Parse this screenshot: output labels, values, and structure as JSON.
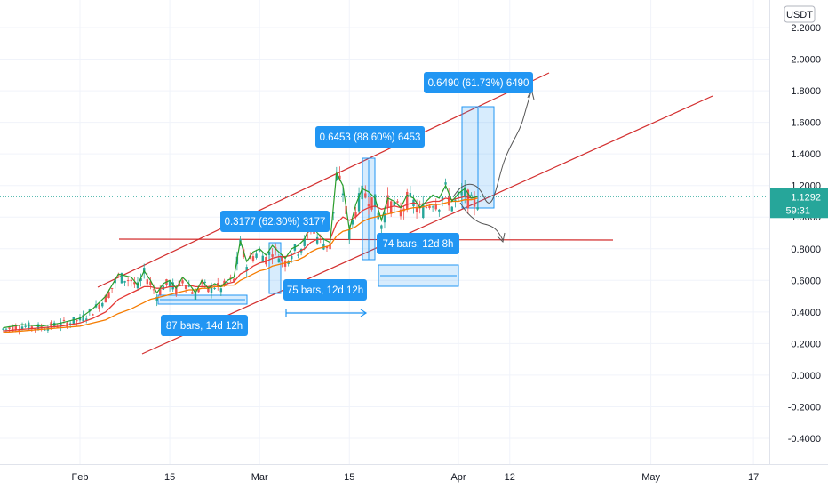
{
  "chart_data": {
    "type": "line",
    "currency_label": "USDT",
    "y_ticks": [
      "2.2000",
      "2.0000",
      "1.8000",
      "1.6000",
      "1.4000",
      "1.2000",
      "1.0000",
      "0.8000",
      "0.6000",
      "0.4000",
      "0.2000",
      "0.0000",
      "-0.2000",
      "-0.4000"
    ],
    "y_tick_values": [
      2.2,
      2.0,
      1.8,
      1.6,
      1.4,
      1.2,
      1.0,
      0.8,
      0.6,
      0.4,
      0.2,
      0.0,
      -0.2,
      -0.4
    ],
    "x_ticks": [
      "Feb",
      "15",
      "Mar",
      "15",
      "Apr",
      "12",
      "May",
      "17"
    ],
    "x_tick_days": [
      0,
      14,
      28,
      42,
      59,
      67,
      89,
      105
    ],
    "y_range": [
      -0.45,
      2.22
    ],
    "day_range": [
      -12,
      115
    ],
    "current_price": "1.1292",
    "countdown": "59:31",
    "grid": true,
    "colors": {
      "price_line": "#2a9d2a",
      "candles_up": "#26a69a",
      "candles_down": "#ef5350",
      "ma_fast": "#e53935",
      "ma_slow": "#f57c00",
      "trend": "#d32f2f",
      "measure": "#2196f3",
      "label_bg": "#2196f3",
      "price_badge": "#26a69a",
      "current_line": "#26a69a"
    },
    "price_series_days": [
      -12,
      -9,
      -6,
      -3,
      0,
      2,
      4,
      6,
      8,
      9,
      10,
      11,
      12,
      13,
      14,
      15,
      16,
      17,
      18,
      19,
      20,
      21,
      22,
      23,
      24,
      25,
      26,
      27,
      28,
      29,
      30,
      31,
      32,
      33,
      34,
      35,
      36,
      37,
      38,
      39,
      40,
      41,
      42,
      43,
      44,
      45,
      46,
      47,
      48,
      49,
      50,
      51,
      52,
      53,
      54,
      55,
      56,
      57,
      58,
      59,
      60,
      61,
      62
    ],
    "price_series_values": [
      0.3,
      0.32,
      0.31,
      0.33,
      0.36,
      0.42,
      0.5,
      0.64,
      0.62,
      0.57,
      0.66,
      0.6,
      0.52,
      0.58,
      0.6,
      0.55,
      0.62,
      0.58,
      0.52,
      0.6,
      0.55,
      0.58,
      0.56,
      0.6,
      0.62,
      0.85,
      0.72,
      0.78,
      0.8,
      0.76,
      0.82,
      0.78,
      0.74,
      0.8,
      0.82,
      0.86,
      0.96,
      0.9,
      0.86,
      0.84,
      1.28,
      1.2,
      0.92,
      1.08,
      1.18,
      1.16,
      1.12,
      0.98,
      1.12,
      1.1,
      1.06,
      1.14,
      1.12,
      1.06,
      1.1,
      1.14,
      1.12,
      1.2,
      1.1,
      1.15,
      1.18,
      1.12,
      1.13
    ],
    "ma_fast_values": [
      0.28,
      0.29,
      0.3,
      0.31,
      0.33,
      0.36,
      0.4,
      0.48,
      0.52,
      0.54,
      0.56,
      0.56,
      0.55,
      0.55,
      0.56,
      0.56,
      0.57,
      0.57,
      0.56,
      0.56,
      0.56,
      0.57,
      0.57,
      0.58,
      0.59,
      0.64,
      0.66,
      0.69,
      0.71,
      0.72,
      0.74,
      0.75,
      0.75,
      0.76,
      0.78,
      0.8,
      0.84,
      0.86,
      0.86,
      0.86,
      0.96,
      1.0,
      0.98,
      1.0,
      1.04,
      1.06,
      1.07,
      1.05,
      1.06,
      1.07,
      1.06,
      1.08,
      1.09,
      1.08,
      1.09,
      1.1,
      1.1,
      1.12,
      1.11,
      1.12,
      1.13,
      1.12,
      1.13
    ],
    "ma_slow_values": [
      0.27,
      0.28,
      0.29,
      0.3,
      0.31,
      0.33,
      0.35,
      0.39,
      0.42,
      0.44,
      0.46,
      0.48,
      0.49,
      0.5,
      0.51,
      0.52,
      0.53,
      0.54,
      0.54,
      0.55,
      0.55,
      0.56,
      0.56,
      0.57,
      0.57,
      0.6,
      0.62,
      0.64,
      0.66,
      0.67,
      0.69,
      0.7,
      0.71,
      0.72,
      0.73,
      0.75,
      0.78,
      0.8,
      0.81,
      0.82,
      0.88,
      0.91,
      0.92,
      0.94,
      0.97,
      0.99,
      1.0,
      1.01,
      1.02,
      1.03,
      1.04,
      1.05,
      1.06,
      1.06,
      1.07,
      1.08,
      1.08,
      1.09,
      1.1,
      1.1,
      1.11,
      1.11,
      1.12
    ],
    "annotations": [
      {
        "text": "0.3177 (62.30%) 3177"
      },
      {
        "text": "0.6453 (88.60%) 6453"
      },
      {
        "text": "0.6490 (61.73%) 6490"
      },
      {
        "text": "74 bars, 12d 8h"
      },
      {
        "text": "75 bars, 12d 12h"
      },
      {
        "text": "87 bars, 14d 12h"
      }
    ]
  }
}
